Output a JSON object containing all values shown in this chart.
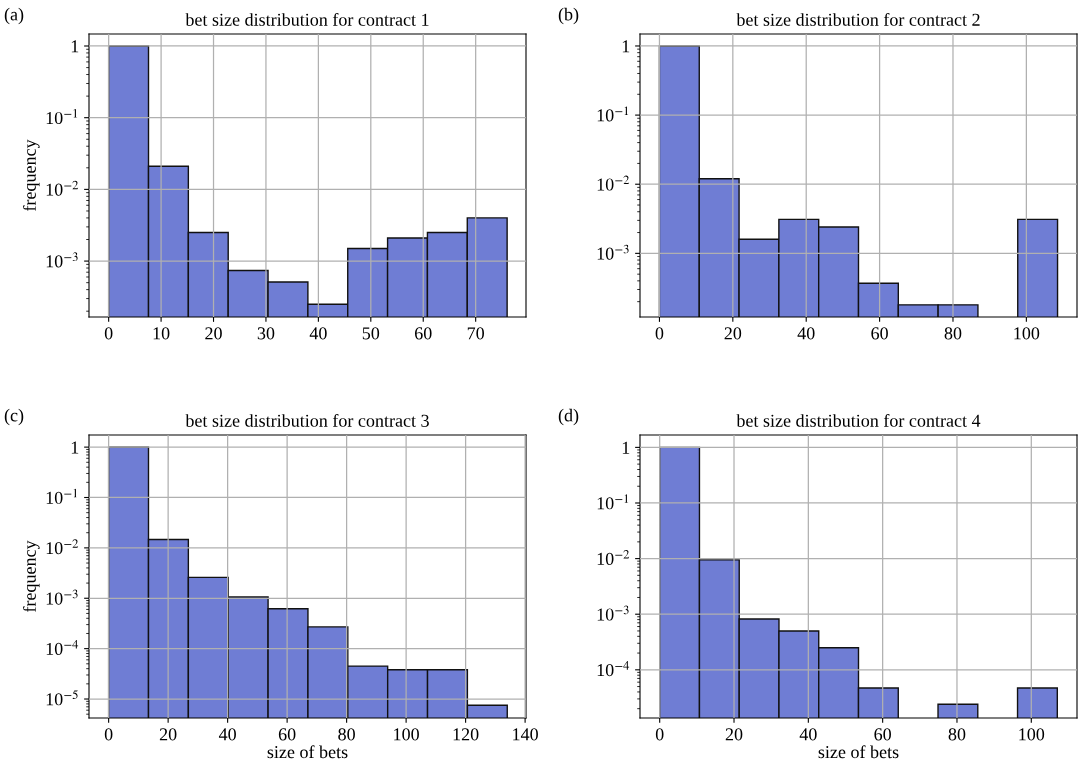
{
  "chart_data": [
    {
      "type": "histogram",
      "title": "bet size distribution for contract 1",
      "ylabel": "frequency",
      "annotations": [
        "(a)"
      ],
      "color": "#6f7dd4",
      "log": "y",
      "grid": true,
      "bins": [
        0,
        7.6,
        15.2,
        22.8,
        30.4,
        38,
        45.6,
        53.2,
        60.8,
        68.4,
        76
      ],
      "values": [
        1.0,
        0.021,
        0.0025,
        0.00074,
        0.00051,
        0.00025,
        0.0015,
        0.0021,
        0.0025,
        0.004
      ],
      "xlim": [
        -3.75,
        79.6
      ],
      "xticks": [
        0,
        10,
        20,
        30,
        40,
        50,
        60,
        70
      ],
      "ylim": [
        0.000166,
        1.47
      ],
      "yticks": [
        {
          "value": 0.001,
          "label": "10$^{−3}$"
        },
        {
          "value": 0.01,
          "label": "10$^{−2}$"
        },
        {
          "value": 0.1,
          "label": "10$^{−1}$"
        },
        1
      ]
    },
    {
      "type": "histogram",
      "title": "bet size distribution for contract 2",
      "annotations": [
        "(b)"
      ],
      "color": "#6f7dd4",
      "log": "y",
      "grid": true,
      "bins": [
        0,
        10.85,
        21.7,
        32.55,
        43.4,
        54.25,
        65.1,
        75.95,
        86.8,
        97.65,
        108.5
      ],
      "values": [
        1.0,
        0.012,
        0.0016,
        0.0031,
        0.0024,
        0.00037,
        0.00018,
        0.00018,
        null,
        0.0031
      ],
      "xlim": [
        -5.3,
        113.8
      ],
      "xticks": [
        0,
        20,
        40,
        60,
        80,
        100
      ],
      "ylim": [
        0.00012,
        1.49
      ],
      "yticks": [
        {
          "value": 0.001,
          "label": "10$^{−3}$"
        },
        {
          "value": 0.01,
          "label": "10$^{−2}$"
        },
        {
          "value": 0.1,
          "label": "10$^{−1}$"
        },
        1
      ]
    },
    {
      "type": "histogram",
      "title": "bet size distribution for contract 3",
      "xlabel": "size of bets",
      "ylabel": "frequency",
      "annotations": [
        "(c)"
      ],
      "color": "#6f7dd4",
      "log": "y",
      "grid": true,
      "bins": [
        0,
        13.4,
        26.8,
        40.2,
        53.6,
        67,
        80.4,
        93.8,
        107.2,
        120.6,
        134
      ],
      "values": [
        1.0,
        0.0147,
        0.0026,
        0.00106,
        0.00062,
        0.00027,
        4.5e-05,
        3.8e-05,
        3.8e-05,
        7.5e-06
      ],
      "xlim": [
        -6.6,
        140.3
      ],
      "xticks": [
        0,
        20,
        40,
        60,
        80,
        100,
        120,
        140
      ],
      "ylim": [
        4.2e-06,
        1.74
      ],
      "yticks": [
        {
          "value": 1e-05,
          "label": "10$^{−5}$"
        },
        {
          "value": 0.0001,
          "label": "10$^{−4}$"
        },
        {
          "value": 0.001,
          "label": "10$^{−3}$"
        },
        {
          "value": 0.01,
          "label": "10$^{−2}$"
        },
        {
          "value": 0.1,
          "label": "10$^{−1}$"
        },
        1
      ]
    },
    {
      "type": "histogram",
      "title": "bet size distribution for contract 4",
      "xlabel": "size of bets",
      "annotations": [
        "(d)"
      ],
      "color": "#6f7dd4",
      "log": "y",
      "grid": true,
      "bins": [
        0,
        10.7,
        21.4,
        32.1,
        42.8,
        53.5,
        64.2,
        74.9,
        85.6,
        96.3,
        107
      ],
      "values": [
        1.0,
        0.0095,
        0.00082,
        0.0005,
        0.00025,
        4.7e-05,
        null,
        2.4e-05,
        null,
        4.7e-05
      ],
      "xlim": [
        -5.3,
        112.3
      ],
      "xticks": [
        0,
        20,
        40,
        60,
        80,
        100
      ],
      "ylim": [
        1.36e-05,
        1.67
      ],
      "yticks": [
        {
          "value": 0.0001,
          "label": "10$^{−4}$"
        },
        {
          "value": 0.001,
          "label": "10$^{−3}$"
        },
        {
          "value": 0.01,
          "label": "10$^{−2}$"
        },
        {
          "value": 0.1,
          "label": "10$^{−1}$"
        },
        1
      ]
    }
  ]
}
